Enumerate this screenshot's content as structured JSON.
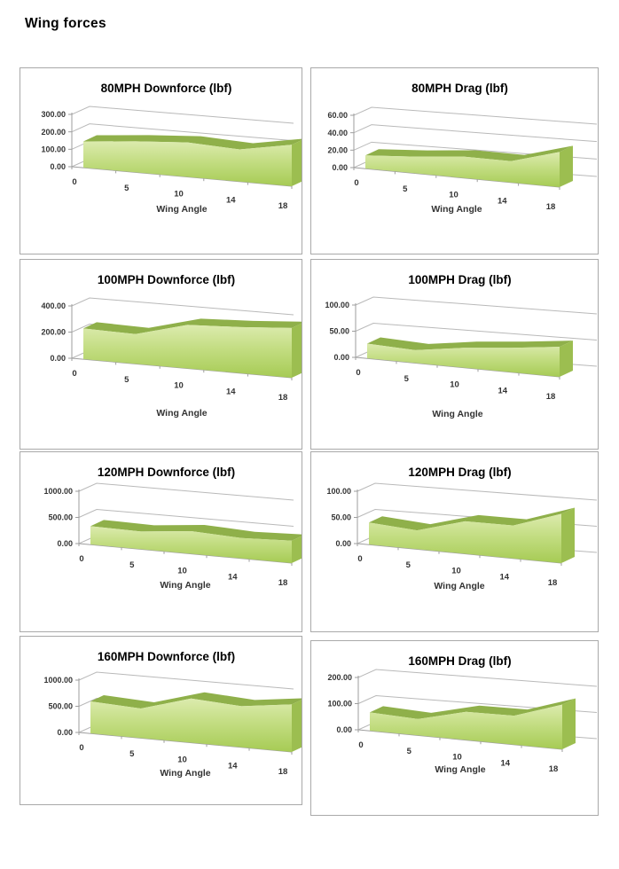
{
  "page": {
    "title": "Wing forces"
  },
  "colors": {
    "area_face_top": "#dcebae",
    "area_face_mid": "#c3dd82",
    "area_face_bottom": "#a6cb54",
    "area_top_surface": "#8fb04a",
    "area_side": "#9cbe50",
    "gridline": "#b9b9b9",
    "axis_line": "#9e9e9e",
    "tick_text": "#333333",
    "title_text": "#000000",
    "box_border": "#a9a9a9"
  },
  "chart_data": [
    {
      "type": "area",
      "title": "80MPH Downforce (lbf)",
      "xlabel": "Wing Angle",
      "categories": [
        "0",
        "5",
        "10",
        "14",
        "18"
      ],
      "values": [
        150,
        168,
        178,
        158,
        195
      ],
      "y_ticks": [
        "0.00",
        "100.00",
        "200.00",
        "300.00"
      ],
      "ylim": [
        0,
        300
      ],
      "grid": true,
      "legend": "none"
    },
    {
      "type": "area",
      "title": "80MPH Drag (lbf)",
      "xlabel": "Wing Angle",
      "categories": [
        "0",
        "5",
        "10",
        "14",
        "18"
      ],
      "values": [
        15,
        18,
        22,
        21,
        33
      ],
      "y_ticks": [
        "0.00",
        "20.00",
        "40.00",
        "60.00"
      ],
      "ylim": [
        0,
        60
      ],
      "grid": true,
      "legend": "none"
    },
    {
      "type": "area",
      "title": "100MPH Downforce (lbf)",
      "xlabel": "Wing Angle",
      "categories": [
        "0",
        "5",
        "10",
        "14",
        "18"
      ],
      "values": [
        235,
        215,
        300,
        302,
        312
      ],
      "y_ticks": [
        "0.00",
        "200.00",
        "400.00"
      ],
      "ylim": [
        0,
        400
      ],
      "grid": true,
      "legend": "none"
    },
    {
      "type": "area",
      "title": "100MPH Drag (lbf)",
      "xlabel": "Wing Angle",
      "categories": [
        "0",
        "5",
        "10",
        "14",
        "18"
      ],
      "values": [
        28,
        23,
        34,
        40,
        47
      ],
      "y_ticks": [
        "0.00",
        "50.00",
        "100.00"
      ],
      "ylim": [
        0,
        100
      ],
      "grid": true,
      "legend": "none"
    },
    {
      "type": "area",
      "title": "120MPH Downforce (lbf)",
      "xlabel": "Wing Angle",
      "categories": [
        "0",
        "5",
        "10",
        "14",
        "18"
      ],
      "values": [
        350,
        320,
        390,
        335,
        350
      ],
      "y_ticks": [
        "0.00",
        "500.00",
        "1000.00"
      ],
      "ylim": [
        0,
        1000
      ],
      "grid": true,
      "legend": "none"
    },
    {
      "type": "area",
      "title": "120MPH Drag (lbf)",
      "xlabel": "Wing Angle",
      "categories": [
        "0",
        "5",
        "10",
        "14",
        "18"
      ],
      "values": [
        42,
        34,
        56,
        54,
        77
      ],
      "y_ticks": [
        "0.00",
        "50.00",
        "100.00"
      ],
      "ylim": [
        0,
        100
      ],
      "grid": true,
      "legend": "none"
    },
    {
      "type": "area",
      "title": "160MPH Downforce (lbf)",
      "xlabel": "Wing Angle",
      "categories": [
        "0",
        "5",
        "10",
        "14",
        "18"
      ],
      "values": [
        610,
        535,
        760,
        675,
        745
      ],
      "y_ticks": [
        "0.00",
        "500.00",
        "1000.00"
      ],
      "ylim": [
        0,
        1000
      ],
      "grid": true,
      "legend": "none"
    },
    {
      "type": "area",
      "title": "160MPH Drag (lbf)",
      "xlabel": "Wing Angle",
      "categories": [
        "0",
        "5",
        "10",
        "14",
        "18"
      ],
      "values": [
        70,
        59,
        97,
        95,
        140
      ],
      "y_ticks": [
        "0.00",
        "100.00",
        "200.00"
      ],
      "ylim": [
        0,
        200
      ],
      "grid": true,
      "legend": "none"
    }
  ]
}
